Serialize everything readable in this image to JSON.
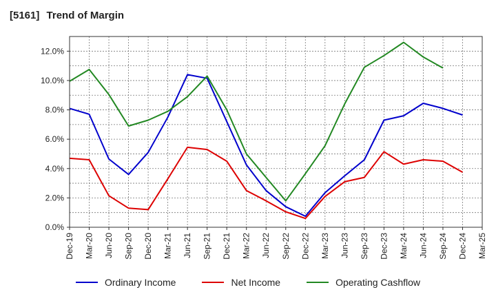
{
  "title": {
    "code": "[5161]",
    "text": "Trend of Margin"
  },
  "chart_data": {
    "type": "line",
    "title": "[5161]  Trend of Margin",
    "categories": [
      "Dec-19",
      "Mar-20",
      "Jun-20",
      "Sep-20",
      "Dec-20",
      "Mar-21",
      "Jun-21",
      "Sep-21",
      "Dec-21",
      "Mar-22",
      "Jun-22",
      "Sep-22",
      "Dec-22",
      "Mar-23",
      "Jun-23",
      "Sep-23",
      "Dec-23",
      "Mar-24",
      "Jun-24",
      "Sep-24",
      "Dec-24",
      "Mar-25"
    ],
    "y_ticks": [
      "0.0%",
      "2.0%",
      "4.0%",
      "6.0%",
      "8.0%",
      "10.0%",
      "12.0%"
    ],
    "ylim": [
      0,
      13
    ],
    "grid": true,
    "legend_position": "bottom",
    "series": [
      {
        "name": "Ordinary Income",
        "color": "#0000cc",
        "values": [
          8.1,
          7.7,
          4.65,
          3.6,
          5.1,
          7.5,
          10.4,
          10.15,
          7.2,
          4.25,
          2.5,
          1.4,
          0.75,
          2.35,
          3.5,
          4.6,
          7.3,
          7.6,
          8.45,
          8.1,
          7.65,
          null
        ]
      },
      {
        "name": "Net Income",
        "color": "#dd0000",
        "values": [
          4.7,
          4.6,
          2.15,
          1.3,
          1.2,
          3.3,
          5.45,
          5.3,
          4.5,
          2.5,
          1.8,
          1.05,
          0.6,
          2.1,
          3.1,
          3.4,
          5.15,
          4.3,
          4.6,
          4.5,
          3.75,
          null
        ]
      },
      {
        "name": "Operating Cashflow",
        "color": "#228822",
        "values": [
          9.95,
          10.75,
          9.05,
          6.9,
          7.3,
          7.9,
          8.9,
          10.3,
          8.0,
          5.0,
          3.4,
          1.8,
          3.65,
          5.55,
          8.4,
          10.9,
          11.7,
          12.6,
          11.6,
          10.85,
          null,
          null
        ]
      }
    ]
  },
  "legend": {
    "items": [
      {
        "label": "Ordinary Income",
        "color": "#0000cc"
      },
      {
        "label": "Net Income",
        "color": "#dd0000"
      },
      {
        "label": "Operating Cashflow",
        "color": "#228822"
      }
    ]
  }
}
